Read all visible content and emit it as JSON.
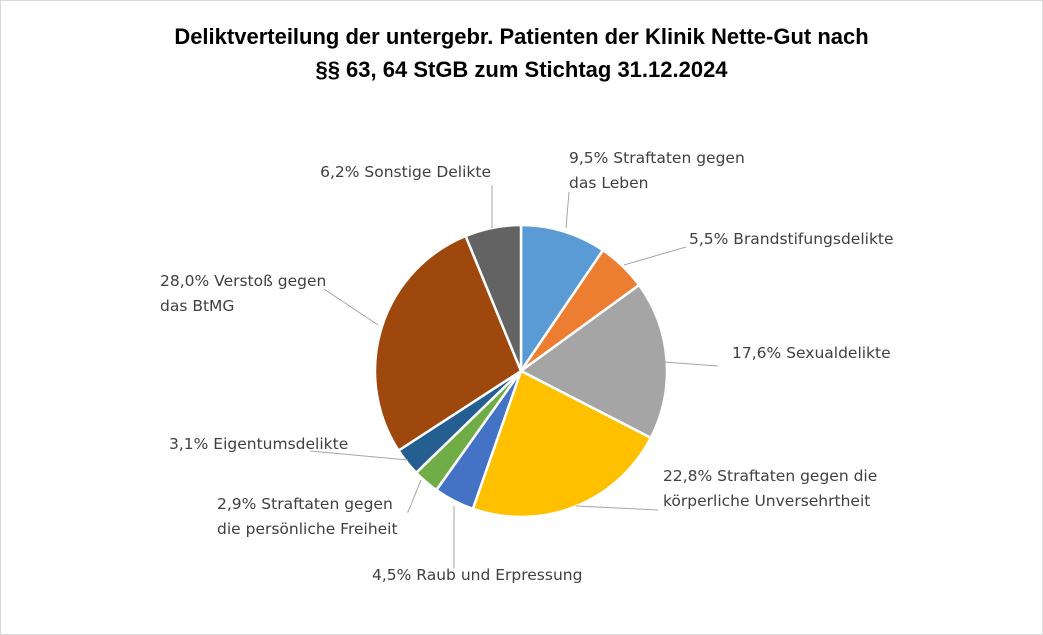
{
  "chart_data": {
    "type": "pie",
    "title_lines": [
      "Deliktverteilung der untergebr. Patienten der Klinik Nette-Gut nach",
      "§§ 63, 64 StGB zum Stichtag 31.12.2024"
    ],
    "slices": [
      {
        "value": 9.5,
        "label_lines": [
          "9,5% Straftaten gegen",
          "das Leben"
        ],
        "color": "#5b9bd5"
      },
      {
        "value": 5.5,
        "label_lines": [
          "5,5% Brandstifungsdelikte"
        ],
        "color": "#ed7d31"
      },
      {
        "value": 17.6,
        "label_lines": [
          "17,6% Sexualdelikte"
        ],
        "color": "#a5a5a5"
      },
      {
        "value": 22.8,
        "label_lines": [
          "22,8% Straftaten gegen die",
          "körperliche Unversehrtheit"
        ],
        "color": "#ffc000"
      },
      {
        "value": 4.5,
        "label_lines": [
          "4,5% Raub und Erpressung"
        ],
        "color": "#4472c4"
      },
      {
        "value": 2.9,
        "label_lines": [
          "2,9% Straftaten gegen",
          "die persönliche Freiheit"
        ],
        "color": "#70ad47"
      },
      {
        "value": 3.1,
        "label_lines": [
          "3,1% Eigentumsdelikte"
        ],
        "color": "#255e91"
      },
      {
        "value": 28.0,
        "label_lines": [
          "28,0% Verstoß gegen",
          "das BtMG"
        ],
        "color": "#9e480e"
      },
      {
        "value": 6.2,
        "label_lines": [
          "6,2% Sonstige Delikte"
        ],
        "color": "#636363"
      }
    ]
  }
}
